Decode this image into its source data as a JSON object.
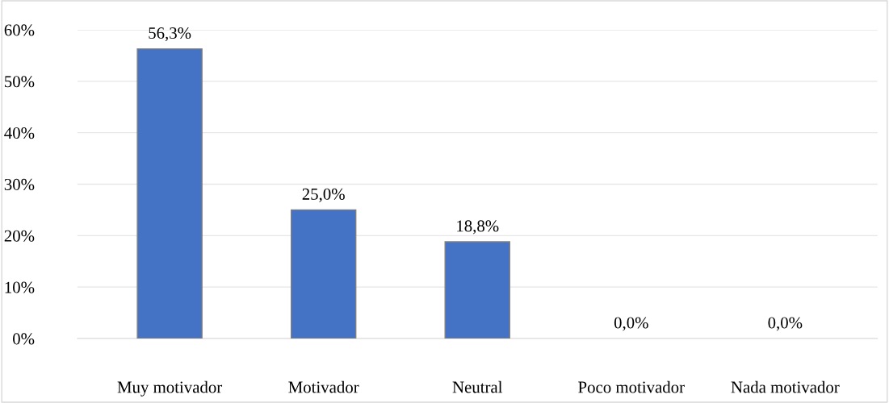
{
  "chart_data": {
    "type": "bar",
    "categories": [
      "Muy motivador",
      "Motivador",
      "Neutral",
      "Poco motivador",
      "Nada motivador"
    ],
    "values": [
      56.3,
      25.0,
      18.8,
      0.0,
      0.0
    ],
    "value_labels": [
      "56,3%",
      "25,0%",
      "18,8%",
      "0,0%",
      "0,0%"
    ],
    "color": "#4472c4",
    "ylim": [
      0,
      60
    ],
    "yticks": [
      {
        "value": 0,
        "label": "0%"
      },
      {
        "value": 10,
        "label": "10%"
      },
      {
        "value": 20,
        "label": "20%"
      },
      {
        "value": 30,
        "label": "30%"
      },
      {
        "value": 40,
        "label": "40%"
      },
      {
        "value": 50,
        "label": "50%"
      },
      {
        "value": 60,
        "label": "60%"
      }
    ],
    "grid": "y"
  }
}
